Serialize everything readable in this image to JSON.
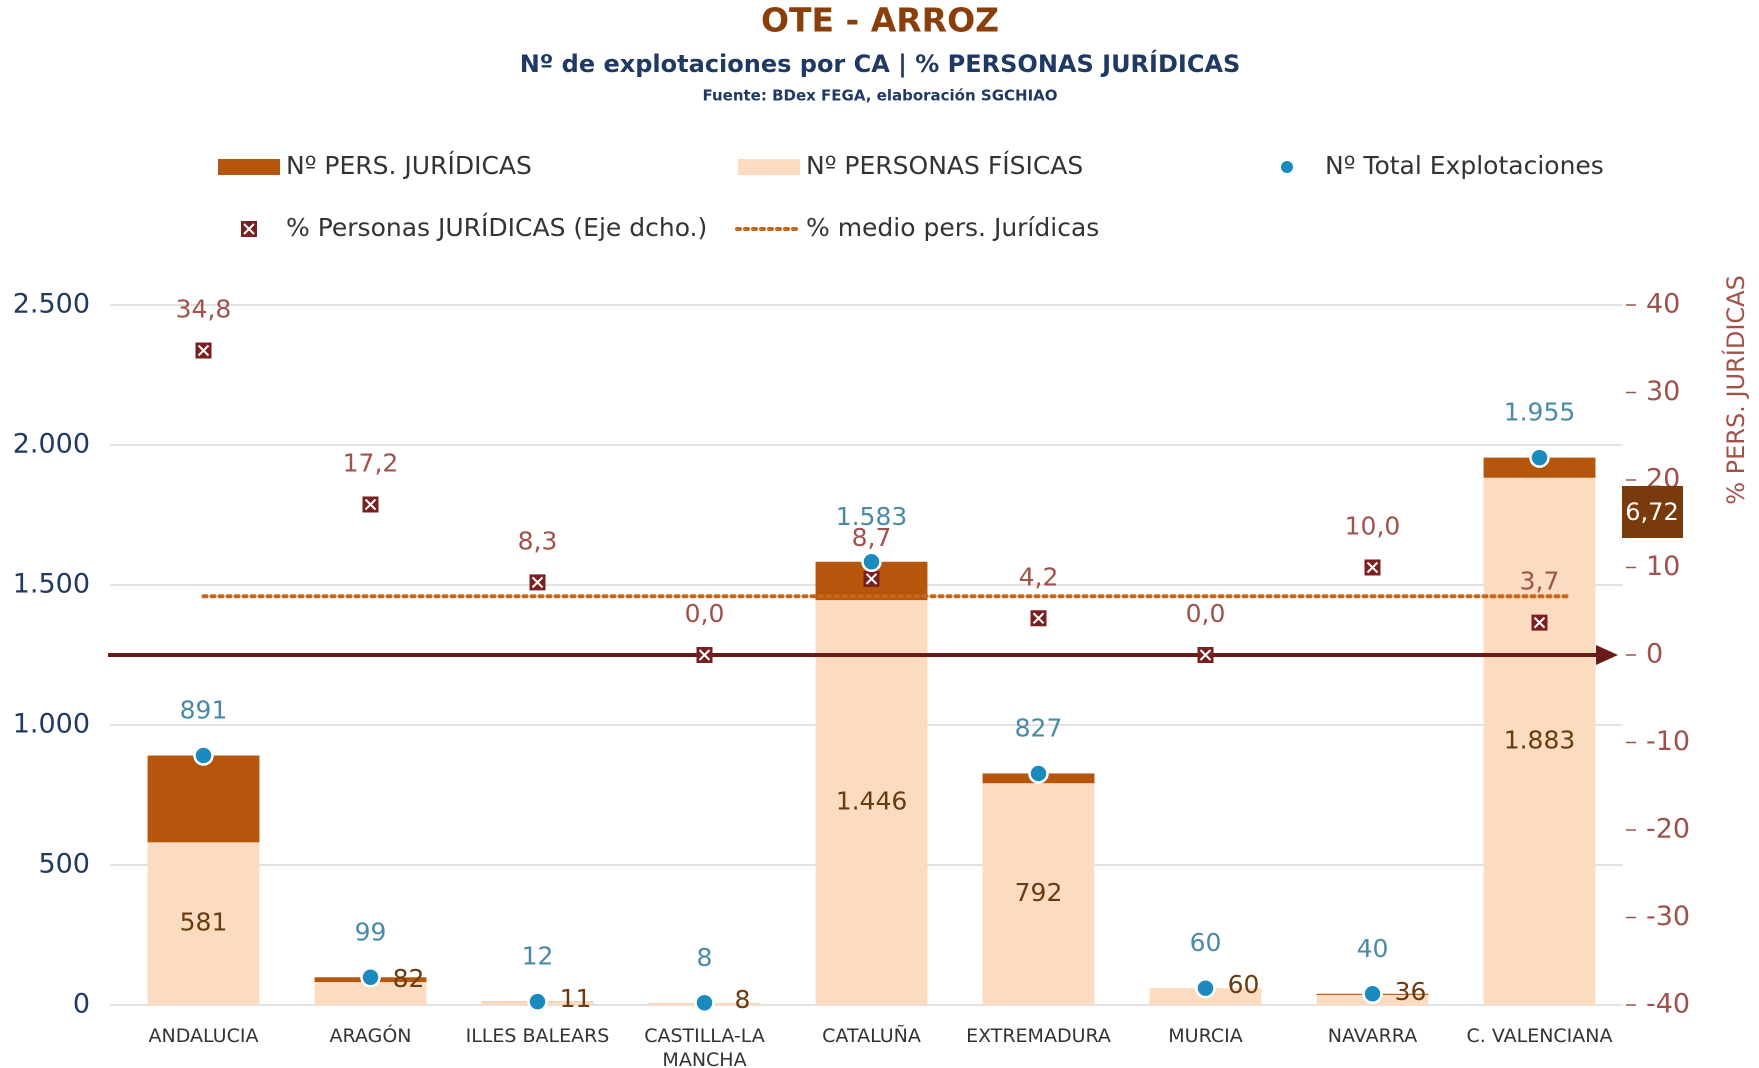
{
  "chart_data": {
    "type": "combo",
    "title": "OTE - ARROZ",
    "subtitle": "Nº de explotaciones por CA | % PERSONAS JURÍDICAS",
    "source": "Fuente: BDex FEGA, elaboración SGCHIAO",
    "y2label": "% PERS. JURÍDICAS",
    "categories": [
      "ANDALUCIA",
      "ARAGÓN",
      "ILLES BALEARS",
      "CASTILLA-LA MANCHA",
      "CATALUÑA",
      "EXTREMADURA",
      "MURCIA",
      "NAVARRA",
      "C. VALENCIANA"
    ],
    "series": [
      {
        "name": "Nº PERS. JURÍDICAS",
        "type": "stacked_bar",
        "color": "#b5560c",
        "values": [
          310,
          17,
          1,
          0,
          137,
          35,
          0,
          4,
          72
        ]
      },
      {
        "name": "Nº PERSONAS FÍSICAS",
        "type": "stacked_bar",
        "color": "#fcdcc0",
        "values": [
          581,
          82,
          11,
          8,
          1446,
          792,
          60,
          36,
          1883
        ],
        "value_labels": [
          "581",
          "82",
          "11",
          "8",
          "1.446",
          "792",
          "60",
          "36",
          "1.883"
        ]
      },
      {
        "name": "Nº Total Explotaciones",
        "type": "scatter",
        "color": "#1b8bbf",
        "values": [
          891,
          99,
          12,
          8,
          1583,
          827,
          60,
          40,
          1955
        ],
        "value_labels": [
          "891",
          "99",
          "12",
          "8",
          "1.583",
          "827",
          "60",
          "40",
          "1.955"
        ]
      },
      {
        "name": "% Personas JURÍDICAS (Eje dcho.)",
        "type": "marker",
        "axis": "y2",
        "color": "#7a1f1f",
        "values": [
          34.8,
          17.2,
          8.3,
          0.0,
          8.7,
          4.2,
          0.0,
          10.0,
          3.7
        ],
        "value_labels": [
          "34,8",
          "17,2",
          "8,3",
          "0,0",
          "8,7",
          "4,2",
          "0,0",
          "10,0",
          "3,7"
        ]
      }
    ],
    "average": {
      "name": "% medio pers. Jurídicas",
      "value": 6.72,
      "label": "6,72",
      "color": "#c8661a",
      "axis": "y2"
    },
    "ylim": [
      0,
      2500
    ],
    "yticks": [
      0,
      500,
      {
        "value": 1000,
        "label": "1.000"
      },
      {
        "value": 1500,
        "label": "1.500"
      },
      {
        "value": 2000,
        "label": "2.000"
      },
      {
        "value": 2500,
        "label": "2.500"
      }
    ],
    "y2lim": [
      -40,
      40
    ],
    "y2ticks": [
      -40,
      -30,
      -20,
      -10,
      0,
      10,
      20,
      30,
      40
    ],
    "grid": true
  }
}
